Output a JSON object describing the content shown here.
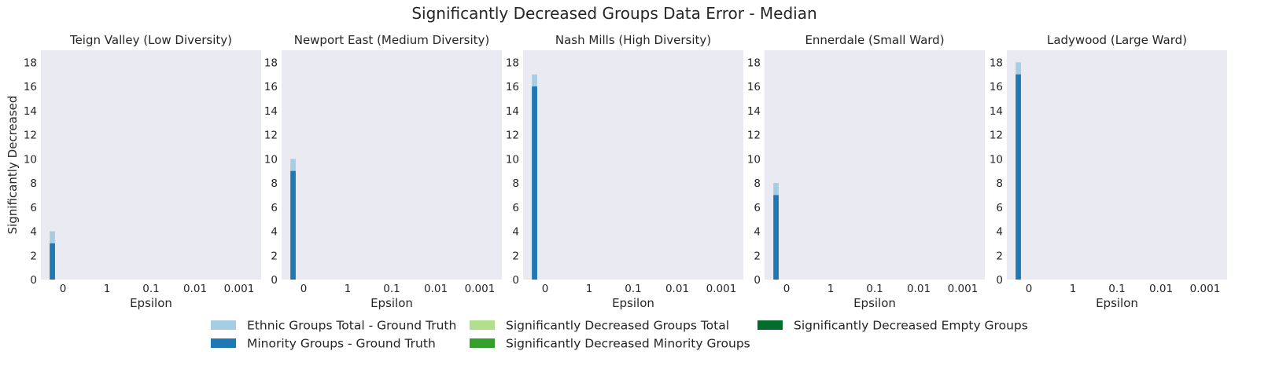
{
  "figure_title": "Significantly Decreased Groups Data Error - Median",
  "chart_data": [
    {
      "type": "bar",
      "title": "Teign Valley (Low Diversity)",
      "xlabel": "Epsilon",
      "ylabel": "Significantly Decreased",
      "categories": [
        "0",
        "1",
        "0.1",
        "0.01",
        "0.001"
      ],
      "ylim": [
        0,
        19
      ],
      "yticks": [
        0,
        2,
        4,
        6,
        8,
        10,
        12,
        14,
        16,
        18
      ],
      "series": [
        {
          "name": "Ethnic Groups Total - Ground Truth",
          "values": [
            4,
            0,
            0,
            0,
            0
          ]
        },
        {
          "name": "Minority Groups - Ground Truth",
          "values": [
            3,
            0,
            0,
            0,
            0
          ]
        },
        {
          "name": "Significantly Decreased Groups Total",
          "values": [
            0,
            0,
            0,
            0,
            0
          ]
        },
        {
          "name": "Significantly Decreased Minority Groups",
          "values": [
            0,
            0,
            0,
            0,
            0
          ]
        },
        {
          "name": "Significantly Decreased Empty Groups",
          "values": [
            0,
            0,
            0,
            0,
            0
          ]
        }
      ]
    },
    {
      "type": "bar",
      "title": "Newport East (Medium Diversity)",
      "xlabel": "Epsilon",
      "ylabel": "",
      "categories": [
        "0",
        "1",
        "0.1",
        "0.01",
        "0.001"
      ],
      "ylim": [
        0,
        19
      ],
      "yticks": [
        0,
        2,
        4,
        6,
        8,
        10,
        12,
        14,
        16,
        18
      ],
      "series": [
        {
          "name": "Ethnic Groups Total - Ground Truth",
          "values": [
            10,
            0,
            0,
            0,
            0
          ]
        },
        {
          "name": "Minority Groups - Ground Truth",
          "values": [
            9,
            0,
            0,
            0,
            0
          ]
        },
        {
          "name": "Significantly Decreased Groups Total",
          "values": [
            0,
            0,
            0,
            0,
            0
          ]
        },
        {
          "name": "Significantly Decreased Minority Groups",
          "values": [
            0,
            0,
            0,
            0,
            0
          ]
        },
        {
          "name": "Significantly Decreased Empty Groups",
          "values": [
            0,
            0,
            0,
            0,
            0
          ]
        }
      ]
    },
    {
      "type": "bar",
      "title": "Nash Mills (High Diversity)",
      "xlabel": "Epsilon",
      "ylabel": "",
      "categories": [
        "0",
        "1",
        "0.1",
        "0.01",
        "0.001"
      ],
      "ylim": [
        0,
        19
      ],
      "yticks": [
        0,
        2,
        4,
        6,
        8,
        10,
        12,
        14,
        16,
        18
      ],
      "series": [
        {
          "name": "Ethnic Groups Total - Ground Truth",
          "values": [
            17,
            0,
            0,
            0,
            0
          ]
        },
        {
          "name": "Minority Groups - Ground Truth",
          "values": [
            16,
            0,
            0,
            0,
            0
          ]
        },
        {
          "name": "Significantly Decreased Groups Total",
          "values": [
            0,
            0,
            0,
            0,
            0
          ]
        },
        {
          "name": "Significantly Decreased Minority Groups",
          "values": [
            0,
            0,
            0,
            0,
            0
          ]
        },
        {
          "name": "Significantly Decreased Empty Groups",
          "values": [
            0,
            0,
            0,
            0,
            0
          ]
        }
      ]
    },
    {
      "type": "bar",
      "title": "Ennerdale (Small Ward)",
      "xlabel": "Epsilon",
      "ylabel": "",
      "categories": [
        "0",
        "1",
        "0.1",
        "0.01",
        "0.001"
      ],
      "ylim": [
        0,
        19
      ],
      "yticks": [
        0,
        2,
        4,
        6,
        8,
        10,
        12,
        14,
        16,
        18
      ],
      "series": [
        {
          "name": "Ethnic Groups Total - Ground Truth",
          "values": [
            8,
            0,
            0,
            0,
            0
          ]
        },
        {
          "name": "Minority Groups - Ground Truth",
          "values": [
            7,
            0,
            0,
            0,
            0
          ]
        },
        {
          "name": "Significantly Decreased Groups Total",
          "values": [
            0,
            0,
            0,
            0,
            0
          ]
        },
        {
          "name": "Significantly Decreased Minority Groups",
          "values": [
            0,
            0,
            0,
            0,
            0
          ]
        },
        {
          "name": "Significantly Decreased Empty Groups",
          "values": [
            0,
            0,
            0,
            0,
            0
          ]
        }
      ]
    },
    {
      "type": "bar",
      "title": "Ladywood (Large Ward)",
      "xlabel": "Epsilon",
      "ylabel": "",
      "categories": [
        "0",
        "1",
        "0.1",
        "0.01",
        "0.001"
      ],
      "ylim": [
        0,
        19
      ],
      "yticks": [
        0,
        2,
        4,
        6,
        8,
        10,
        12,
        14,
        16,
        18
      ],
      "series": [
        {
          "name": "Ethnic Groups Total - Ground Truth",
          "values": [
            18,
            0,
            0,
            0,
            0
          ]
        },
        {
          "name": "Minority Groups - Ground Truth",
          "values": [
            17,
            0,
            0,
            0,
            0
          ]
        },
        {
          "name": "Significantly Decreased Groups Total",
          "values": [
            0,
            0,
            0,
            0,
            0
          ]
        },
        {
          "name": "Significantly Decreased Minority Groups",
          "values": [
            0,
            0,
            0,
            0,
            0
          ]
        },
        {
          "name": "Significantly Decreased Empty Groups",
          "values": [
            0,
            0,
            0,
            0,
            0
          ]
        }
      ]
    }
  ],
  "legend": {
    "placement": "bottom-center",
    "items": [
      {
        "label": "Ethnic Groups Total - Ground Truth",
        "color": "#a6cee3"
      },
      {
        "label": "Minority Groups - Ground Truth",
        "color": "#1f78b4"
      },
      {
        "label": "Significantly Decreased Groups Total",
        "color": "#b2df8a"
      },
      {
        "label": "Significantly Decreased Minority Groups",
        "color": "#33a02c"
      },
      {
        "label": "Significantly Decreased Empty Groups",
        "color": "#006d2c"
      }
    ]
  },
  "style": {
    "plot_background": "#eaeaf2",
    "series_colors": [
      "#a6cee3",
      "#1f78b4",
      "#b2df8a",
      "#33a02c",
      "#006d2c"
    ],
    "grid": false
  }
}
